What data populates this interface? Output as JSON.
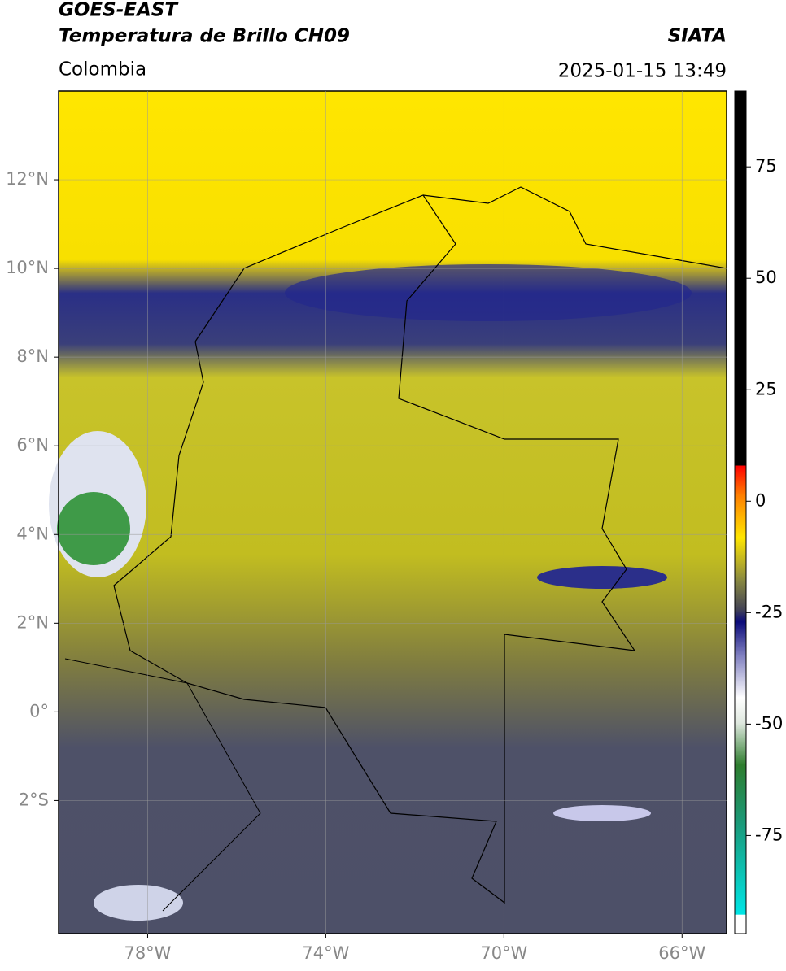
{
  "header": {
    "title": "GOES-EAST",
    "subtitle": "Temperatura de Brillo CH09",
    "region": "Colombia",
    "source": "SIATA",
    "timestamp": "2025-01-15 13:49"
  },
  "map": {
    "xlim": [
      -80,
      -65
    ],
    "ylim": [
      -5,
      14
    ],
    "xticks": [
      {
        "value": -78,
        "label": "78°W"
      },
      {
        "value": -74,
        "label": "74°W"
      },
      {
        "value": -70,
        "label": "70°W"
      },
      {
        "value": -66,
        "label": "66°W"
      }
    ],
    "yticks": [
      {
        "value": -2,
        "label": "2°S"
      },
      {
        "value": 0,
        "label": "0°"
      },
      {
        "value": 2,
        "label": "2°N"
      },
      {
        "value": 4,
        "label": "4°N"
      },
      {
        "value": 6,
        "label": "6°N"
      },
      {
        "value": 8,
        "label": "8°N"
      },
      {
        "value": 10,
        "label": "10°N"
      },
      {
        "value": 12,
        "label": "12°N"
      }
    ],
    "grid": true
  },
  "colorbar": {
    "lim": [
      -97,
      92
    ],
    "ticks": [
      -75,
      -50,
      -25,
      0,
      25,
      50,
      75
    ]
  }
}
